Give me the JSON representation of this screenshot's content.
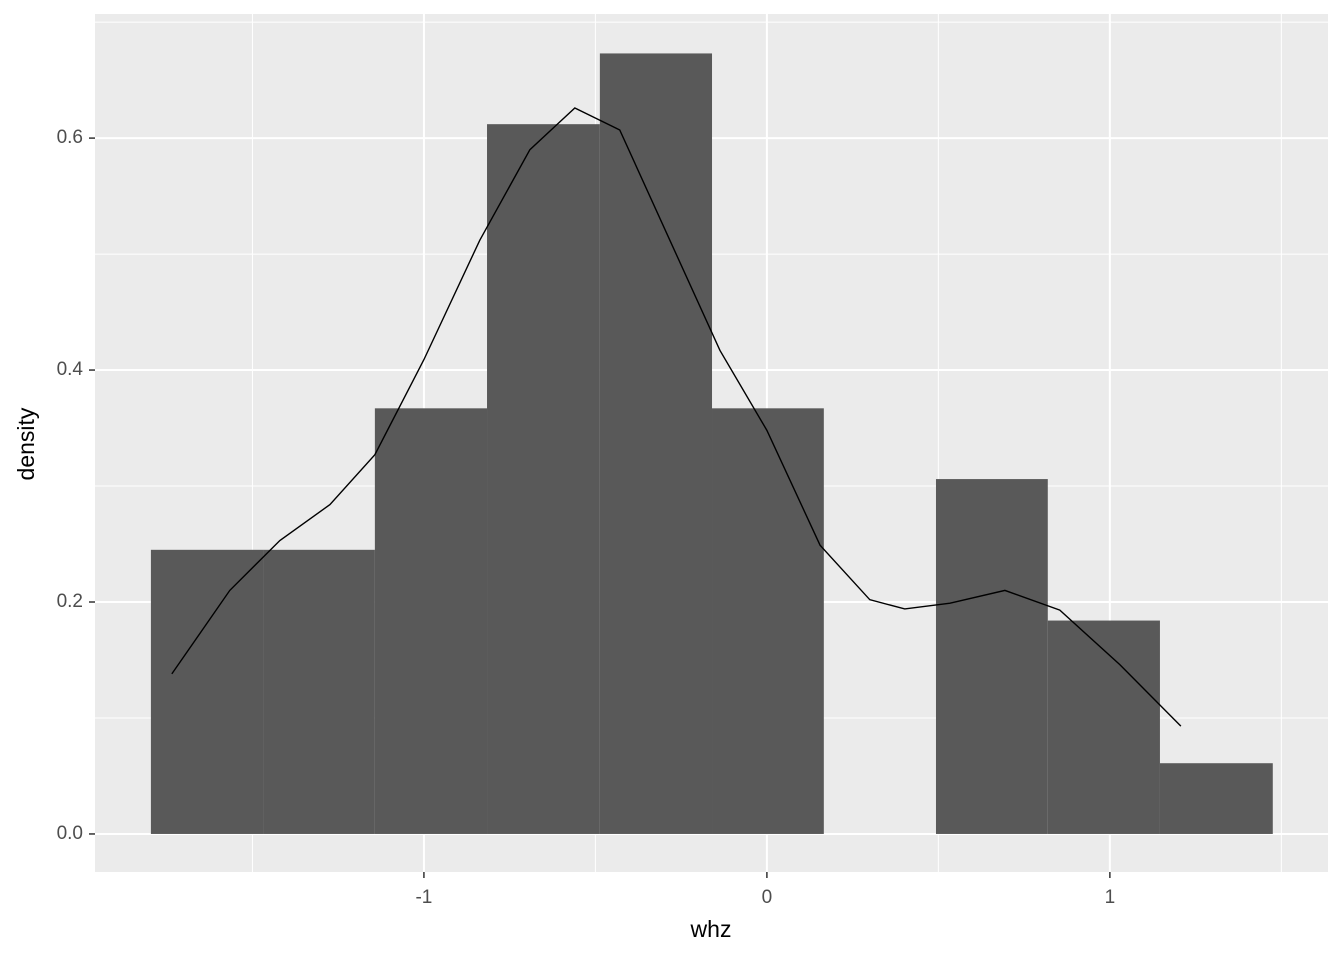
{
  "chart_data": {
    "type": "histogram",
    "x_label": "whz",
    "y_label": "density",
    "bins": [
      -1.796,
      -1.469,
      -1.143,
      -0.816,
      -0.487,
      -0.16,
      0.166,
      0.493,
      0.819,
      1.146,
      1.475
    ],
    "values": [
      0.245,
      0.245,
      0.367,
      0.612,
      0.673,
      0.367,
      0,
      0.306,
      0.184,
      0.061
    ],
    "color": "#595959",
    "density": {
      "color": "#000000",
      "x": [
        -1.735,
        -1.566,
        -1.42,
        -1.274,
        -1.143,
        -1.0,
        -0.837,
        -0.691,
        -0.56,
        -0.429,
        -0.283,
        -0.137,
        0,
        0.155,
        0.3,
        0.402,
        0.534,
        0.694,
        0.854,
        1.029,
        1.207
      ],
      "values": [
        0.138,
        0.21,
        0.253,
        0.284,
        0.327,
        0.409,
        0.512,
        0.59,
        0.626,
        0.607,
        0.512,
        0.417,
        0.348,
        0.249,
        0.202,
        0.194,
        0.199,
        0.21,
        0.193,
        0.146,
        0.093
      ]
    },
    "xlim": [
      -1.959,
      1.636
    ],
    "ylim": [
      -0.0328,
      0.707
    ],
    "xticks": [
      -1,
      0,
      1
    ],
    "yticks": [
      {
        "value": 0,
        "label": "0.0"
      },
      0.2,
      0.4,
      0.6
    ],
    "grid": true
  }
}
